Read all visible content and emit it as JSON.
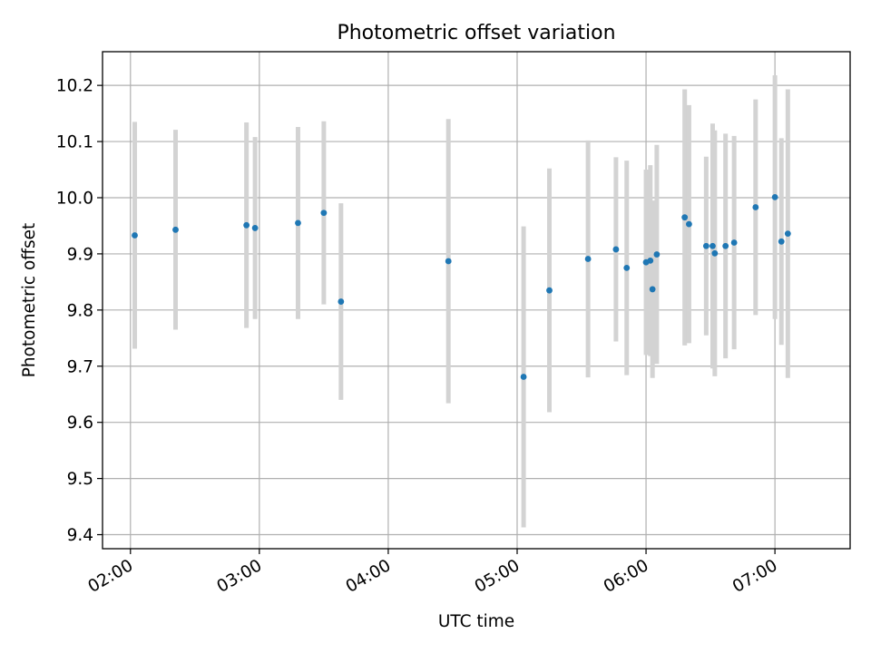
{
  "chart_data": {
    "type": "scatter",
    "title": "Photometric offset variation",
    "xlabel": "UTC time",
    "ylabel": "Photometric offset",
    "x_axis_type": "time",
    "xlim": [
      "01:47",
      "07:35"
    ],
    "ylim": [
      9.375,
      10.26
    ],
    "x_ticks": [
      "02:00",
      "03:00",
      "04:00",
      "05:00",
      "06:00",
      "07:00"
    ],
    "y_ticks": [
      9.4,
      9.5,
      9.6,
      9.7,
      9.8,
      9.9,
      10.0,
      10.1,
      10.2
    ],
    "y_tick_labels": [
      "9.4",
      "9.5",
      "9.6",
      "9.7",
      "9.8",
      "9.9",
      "10.0",
      "10.1",
      "10.2"
    ],
    "grid": true,
    "colors": {
      "point": "#1f77b4",
      "errorbar": "#d3d3d3",
      "grid": "#b0b0b0"
    },
    "points": [
      {
        "x": "02:02",
        "y": 9.933,
        "err": 0.202
      },
      {
        "x": "02:21",
        "y": 9.943,
        "err": 0.178
      },
      {
        "x": "02:54",
        "y": 9.951,
        "err": 0.183
      },
      {
        "x": "02:58",
        "y": 9.946,
        "err": 0.162
      },
      {
        "x": "03:18",
        "y": 9.955,
        "err": 0.171
      },
      {
        "x": "03:30",
        "y": 9.973,
        "err": 0.163
      },
      {
        "x": "03:38",
        "y": 9.815,
        "err": 0.175
      },
      {
        "x": "04:28",
        "y": 9.887,
        "err": 0.253
      },
      {
        "x": "05:03",
        "y": 9.681,
        "err": 0.268
      },
      {
        "x": "05:15",
        "y": 9.835,
        "err": 0.217
      },
      {
        "x": "05:33",
        "y": 9.891,
        "err": 0.211
      },
      {
        "x": "05:46",
        "y": 9.908,
        "err": 0.164
      },
      {
        "x": "05:51",
        "y": 9.875,
        "err": 0.191
      },
      {
        "x": "06:00",
        "y": 9.885,
        "err": 0.165
      },
      {
        "x": "06:02",
        "y": 9.888,
        "err": 0.17
      },
      {
        "x": "06:03",
        "y": 9.837,
        "err": 0.158
      },
      {
        "x": "06:05",
        "y": 9.899,
        "err": 0.195
      },
      {
        "x": "06:18",
        "y": 9.965,
        "err": 0.228
      },
      {
        "x": "06:20",
        "y": 9.953,
        "err": 0.212
      },
      {
        "x": "06:28",
        "y": 9.914,
        "err": 0.159
      },
      {
        "x": "06:31",
        "y": 9.914,
        "err": 0.218
      },
      {
        "x": "06:32",
        "y": 9.901,
        "err": 0.219
      },
      {
        "x": "06:37",
        "y": 9.914,
        "err": 0.2
      },
      {
        "x": "06:41",
        "y": 9.92,
        "err": 0.19
      },
      {
        "x": "06:51",
        "y": 9.983,
        "err": 0.192
      },
      {
        "x": "07:00",
        "y": 10.001,
        "err": 0.217
      },
      {
        "x": "07:03",
        "y": 9.922,
        "err": 0.184
      },
      {
        "x": "07:06",
        "y": 9.936,
        "err": 0.257
      }
    ]
  }
}
